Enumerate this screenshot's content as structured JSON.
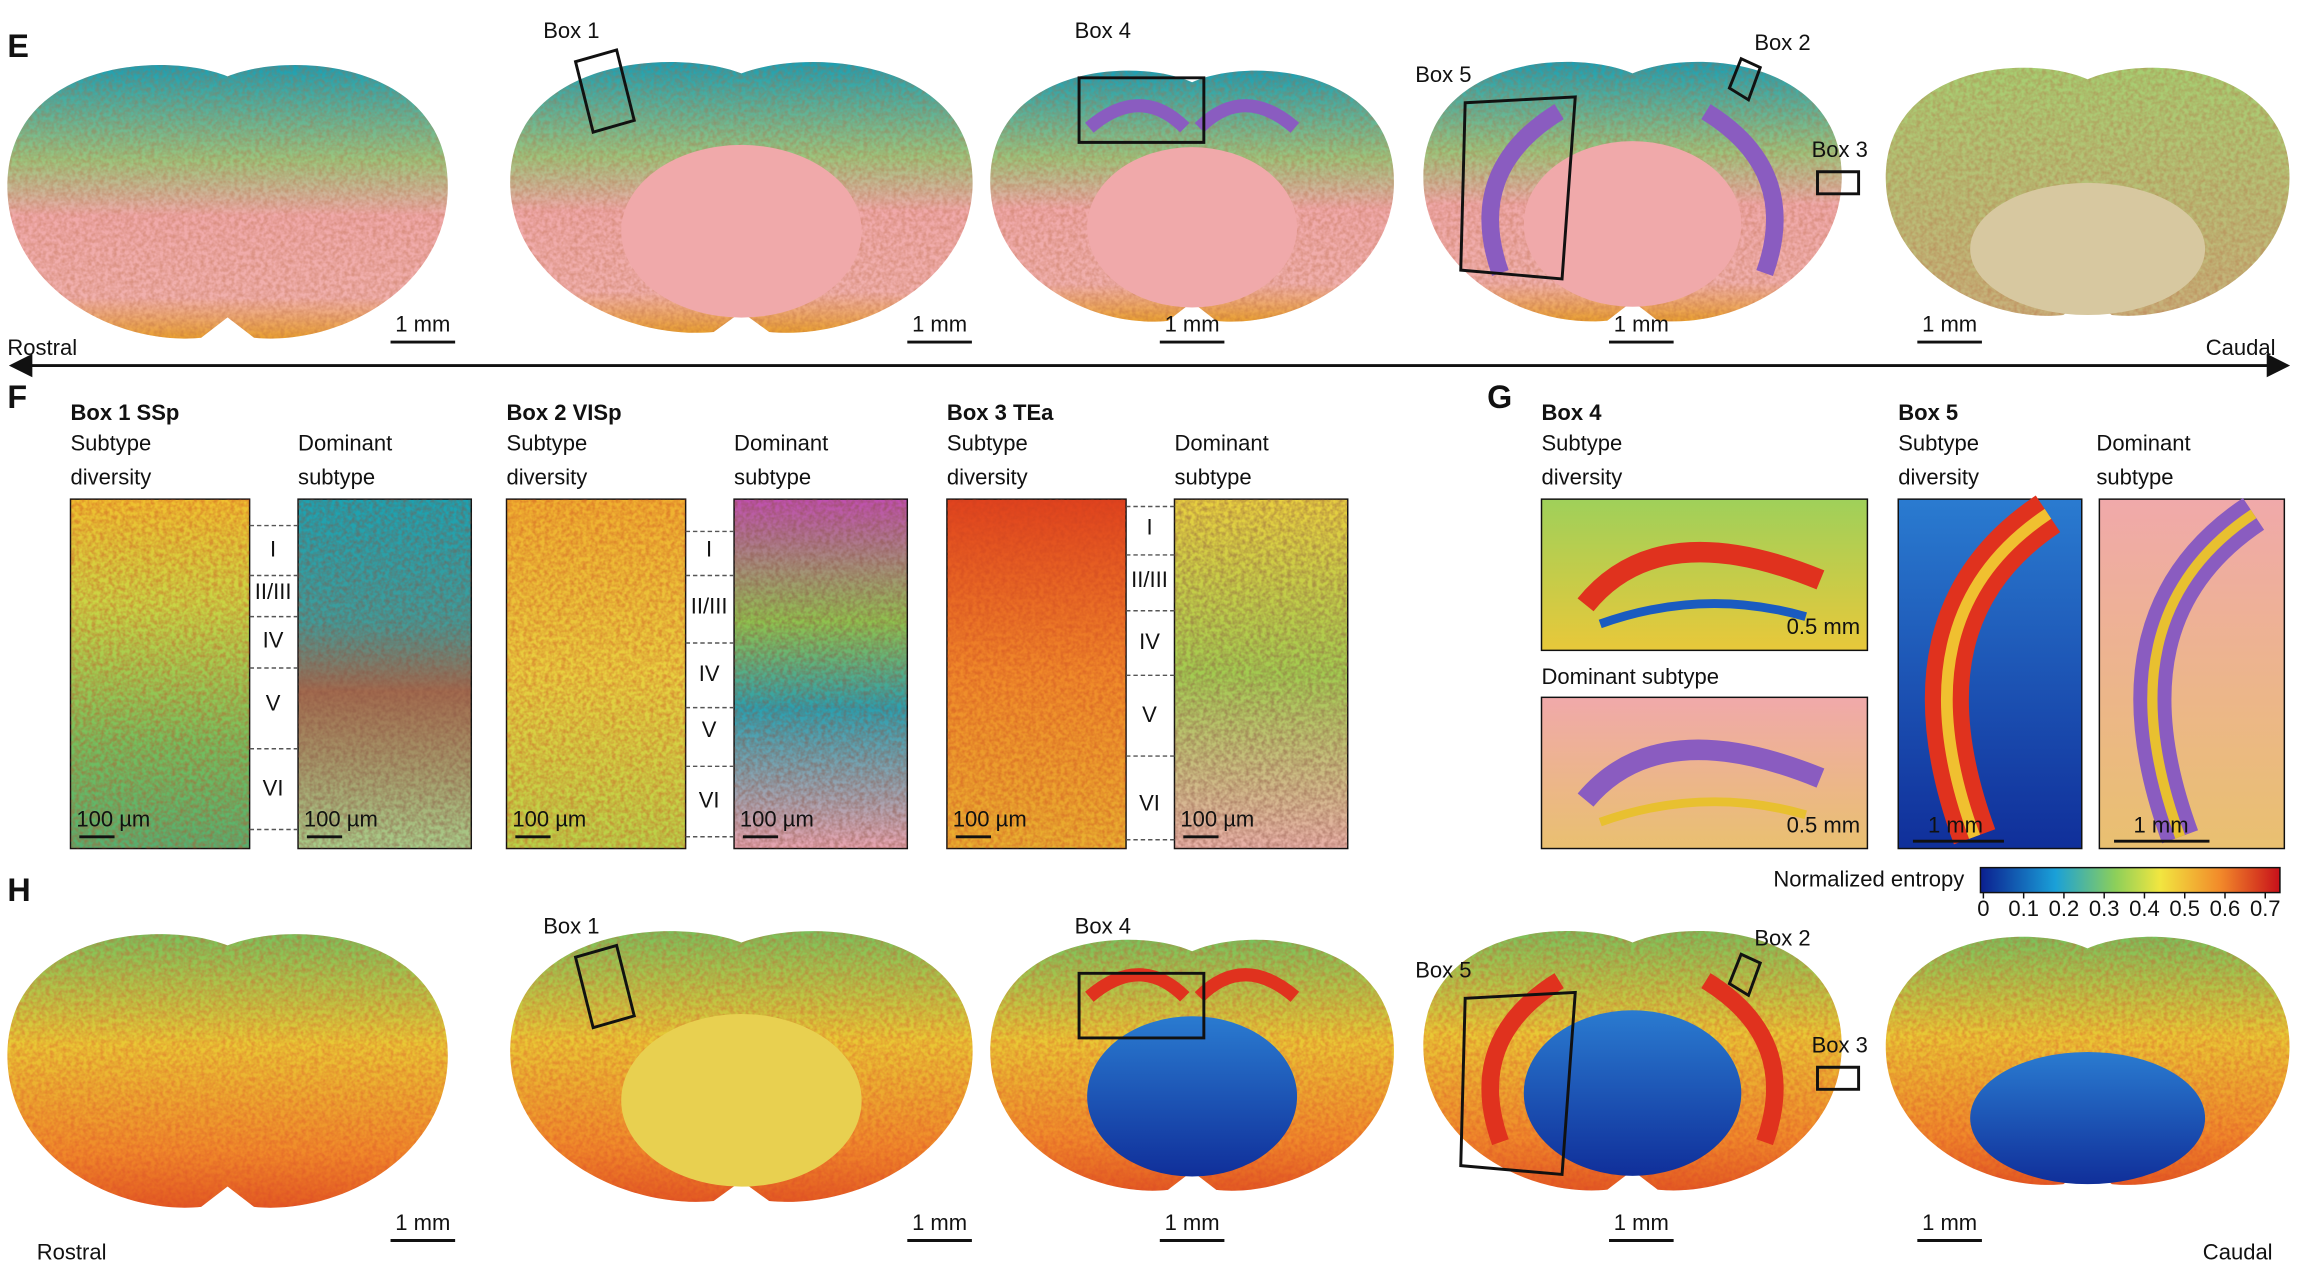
{
  "panel_e": {
    "label": "E",
    "rostral": "Rostral",
    "caudal": "Caudal",
    "sections": [
      {
        "scale_bar": "1 mm"
      },
      {
        "scale_bar": "1 mm"
      },
      {
        "scale_bar": "1 mm"
      },
      {
        "scale_bar": "1 mm"
      },
      {
        "scale_bar": "1 mm"
      }
    ],
    "boxes": [
      "Box 1",
      "Box 4",
      "Box 5",
      "Box 2",
      "Box 3"
    ]
  },
  "panel_f": {
    "label": "F",
    "columns": [
      {
        "title": "Box 1 SSp",
        "left": [
          "Subtype",
          "diversity"
        ],
        "right": [
          "Dominant",
          "subtype"
        ],
        "layers": [
          "I",
          "II/III",
          "IV",
          "V",
          "VI"
        ],
        "scale_bar": "100 µm"
      },
      {
        "title": "Box 2 VISp",
        "left": [
          "Subtype",
          "diversity"
        ],
        "right": [
          "Dominant",
          "subtype"
        ],
        "layers": [
          "I",
          "II/III",
          "IV",
          "V",
          "VI"
        ],
        "scale_bar": "100 µm"
      },
      {
        "title": "Box 3 TEa",
        "left": [
          "Subtype",
          "diversity"
        ],
        "right": [
          "Dominant",
          "subtype"
        ],
        "layers": [
          "I",
          "II/III",
          "IV",
          "V",
          "VI"
        ],
        "scale_bar": "100 µm"
      }
    ]
  },
  "panel_g": {
    "label": "G",
    "box4": {
      "title": "Box 4",
      "top": [
        "Subtype",
        "diversity"
      ],
      "bottom": "Dominant subtype",
      "scale_bar": "0.5 mm"
    },
    "box5": {
      "title": "Box 5",
      "left": [
        "Subtype",
        "diversity"
      ],
      "right": [
        "Dominant",
        "subtype"
      ],
      "scale_bar": "1 mm"
    }
  },
  "colorbar": {
    "title": "Normalized entropy",
    "ticks": [
      0,
      0.1,
      0.2,
      0.3,
      0.4,
      0.5,
      0.6,
      0.7
    ]
  },
  "panel_h": {
    "label": "H",
    "rostral": "Rostral",
    "caudal": "Caudal",
    "sections": [
      {
        "scale_bar": "1 mm"
      },
      {
        "scale_bar": "1 mm"
      },
      {
        "scale_bar": "1 mm"
      },
      {
        "scale_bar": "1 mm"
      },
      {
        "scale_bar": "1 mm"
      }
    ],
    "boxes": [
      "Box 1",
      "Box 4",
      "Box 5",
      "Box 2",
      "Box 3"
    ]
  }
}
